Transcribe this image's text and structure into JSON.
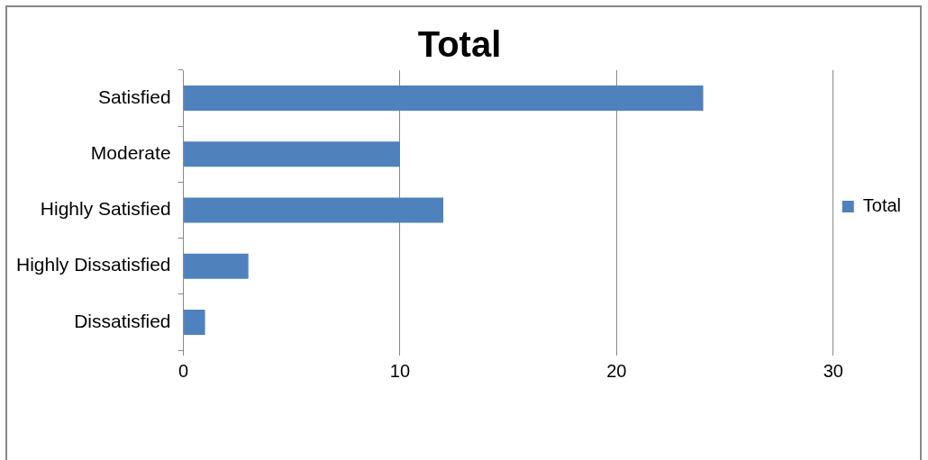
{
  "chart_data": {
    "type": "bar",
    "title": "Total",
    "orientation": "horizontal",
    "categories": [
      "Satisfied",
      "Moderate",
      "Highly Satisfied",
      "Highly Dissatisfied",
      "Dissatisfied"
    ],
    "series": [
      {
        "name": "Total",
        "color": "#4f81bd",
        "values": [
          24,
          10,
          12,
          3,
          1
        ]
      }
    ],
    "xlim": [
      0,
      30
    ],
    "xticks": [
      0,
      10,
      20,
      30
    ],
    "grid": "x",
    "legend": "right"
  }
}
